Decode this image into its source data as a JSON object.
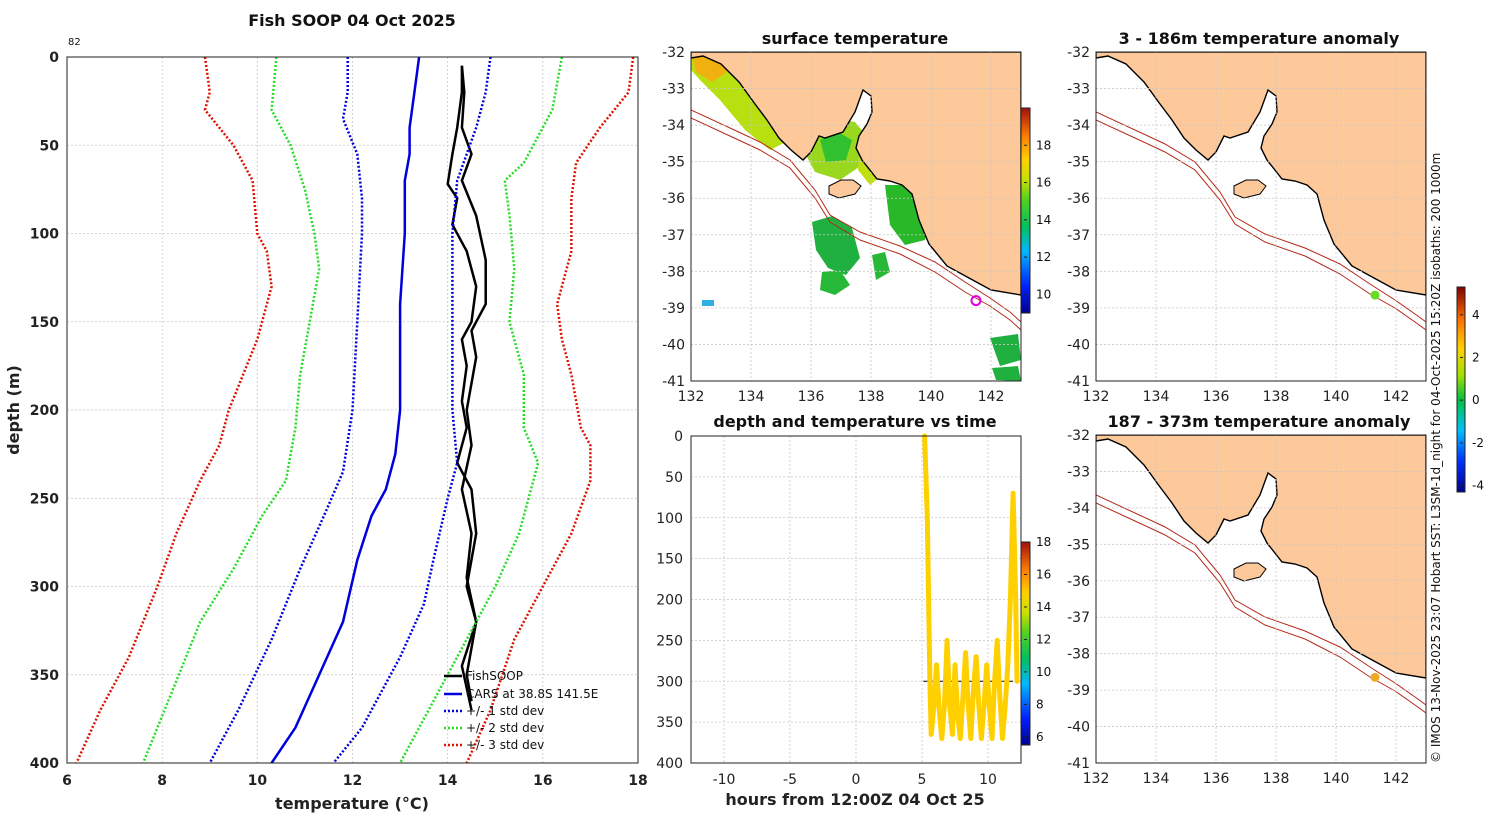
{
  "chart_data": [
    {
      "type": "line",
      "title": "Fish SOOP 04 Oct 2025",
      "corner_label": "82",
      "xlabel": "temperature (°C)",
      "ylabel": "depth (m)",
      "xlim": [
        6,
        18
      ],
      "ylim": [
        400,
        0
      ],
      "xticks": [
        6,
        8,
        10,
        12,
        14,
        16,
        18
      ],
      "yticks": [
        0,
        50,
        100,
        150,
        200,
        250,
        300,
        350,
        400
      ],
      "series": [
        {
          "name": "FishSOOP",
          "color": "#000000",
          "style": "solid",
          "legend_label": "FishSOOP",
          "points": [
            [
              14.3,
              5
            ],
            [
              14.3,
              20
            ],
            [
              14.2,
              40
            ],
            [
              14.1,
              55
            ],
            [
              14.0,
              72
            ],
            [
              14.2,
              80
            ],
            [
              14.1,
              95
            ],
            [
              14.4,
              110
            ],
            [
              14.6,
              130
            ],
            [
              14.5,
              150
            ],
            [
              14.3,
              160
            ],
            [
              14.4,
              175
            ],
            [
              14.3,
              195
            ],
            [
              14.4,
              210
            ],
            [
              14.2,
              230
            ],
            [
              14.5,
              245
            ],
            [
              14.6,
              270
            ],
            [
              14.4,
              300
            ],
            [
              14.6,
              320
            ],
            [
              14.3,
              345
            ],
            [
              14.5,
              370
            ]
          ],
          "cast_upper": [
            [
              14.3,
              5
            ],
            [
              14.35,
              20
            ],
            [
              14.3,
              40
            ],
            [
              14.5,
              55
            ],
            [
              14.3,
              70
            ],
            [
              14.6,
              90
            ],
            [
              14.8,
              115
            ],
            [
              14.8,
              140
            ],
            [
              14.5,
              155
            ],
            [
              14.6,
              170
            ],
            [
              14.4,
              200
            ],
            [
              14.5,
              220
            ],
            [
              14.3,
              245
            ],
            [
              14.5,
              270
            ],
            [
              14.4,
              295
            ],
            [
              14.6,
              320
            ],
            [
              14.4,
              350
            ],
            [
              14.5,
              365
            ]
          ]
        },
        {
          "name": "CARS",
          "color": "#0000dd",
          "style": "solid",
          "legend_label": "CARS at 38.8S 141.5E",
          "points": [
            [
              13.4,
              0
            ],
            [
              13.3,
              20
            ],
            [
              13.2,
              40
            ],
            [
              13.2,
              55
            ],
            [
              13.1,
              70
            ],
            [
              13.1,
              100
            ],
            [
              13.0,
              140
            ],
            [
              13.0,
              170
            ],
            [
              13.0,
              200
            ],
            [
              12.9,
              225
            ],
            [
              12.7,
              245
            ],
            [
              12.4,
              260
            ],
            [
              12.1,
              285
            ],
            [
              11.8,
              320
            ],
            [
              11.3,
              350
            ],
            [
              10.8,
              380
            ],
            [
              10.3,
              400
            ]
          ]
        },
        {
          "name": "+/- 1 std dev",
          "color": "#0000dd",
          "style": "dotted",
          "legend_label": "+/- 1 std dev",
          "points_lo": [
            [
              11.9,
              0
            ],
            [
              11.9,
              20
            ],
            [
              11.8,
              35
            ],
            [
              12.1,
              55
            ],
            [
              12.2,
              80
            ],
            [
              12.2,
              100
            ],
            [
              12.1,
              150
            ],
            [
              12.0,
              200
            ],
            [
              11.8,
              235
            ],
            [
              11.4,
              260
            ],
            [
              10.9,
              290
            ],
            [
              10.3,
              330
            ],
            [
              9.6,
              370
            ],
            [
              9.0,
              400
            ]
          ],
          "points_hi": [
            [
              14.9,
              0
            ],
            [
              14.8,
              20
            ],
            [
              14.6,
              40
            ],
            [
              14.4,
              55
            ],
            [
              14.2,
              70
            ],
            [
              14.1,
              100
            ],
            [
              14.1,
              150
            ],
            [
              14.1,
              200
            ],
            [
              14.2,
              230
            ],
            [
              14.0,
              250
            ],
            [
              13.7,
              285
            ],
            [
              13.5,
              310
            ],
            [
              13.0,
              340
            ],
            [
              12.2,
              380
            ],
            [
              11.6,
              400
            ]
          ]
        },
        {
          "name": "+/- 2 std dev",
          "color": "#22dd22",
          "style": "dotted",
          "legend_label": "+/- 2 std dev",
          "points_lo": [
            [
              10.4,
              0
            ],
            [
              10.3,
              30
            ],
            [
              10.7,
              50
            ],
            [
              11.0,
              75
            ],
            [
              11.2,
              100
            ],
            [
              11.3,
              120
            ],
            [
              11.1,
              150
            ],
            [
              10.9,
              180
            ],
            [
              10.8,
              210
            ],
            [
              10.6,
              240
            ],
            [
              10.1,
              260
            ],
            [
              9.5,
              290
            ],
            [
              8.8,
              320
            ],
            [
              8.2,
              360
            ],
            [
              7.6,
              400
            ]
          ],
          "points_hi": [
            [
              16.4,
              0
            ],
            [
              16.2,
              30
            ],
            [
              15.6,
              60
            ],
            [
              15.2,
              70
            ],
            [
              15.3,
              90
            ],
            [
              15.4,
              120
            ],
            [
              15.3,
              150
            ],
            [
              15.6,
              180
            ],
            [
              15.6,
              210
            ],
            [
              15.9,
              230
            ],
            [
              15.7,
              250
            ],
            [
              15.5,
              270
            ],
            [
              15.0,
              300
            ],
            [
              14.4,
              330
            ],
            [
              13.6,
              370
            ],
            [
              13.0,
              400
            ]
          ]
        },
        {
          "name": "+/- 3 std dev",
          "color": "#dd1100",
          "style": "dotted",
          "legend_label": "+/- 3 std dev",
          "points_lo": [
            [
              8.9,
              0
            ],
            [
              9.0,
              20
            ],
            [
              8.9,
              30
            ],
            [
              9.5,
              50
            ],
            [
              9.9,
              70
            ],
            [
              10.0,
              100
            ],
            [
              10.2,
              110
            ],
            [
              10.3,
              130
            ],
            [
              10.0,
              160
            ],
            [
              9.7,
              180
            ],
            [
              9.4,
              200
            ],
            [
              9.2,
              220
            ],
            [
              8.8,
              240
            ],
            [
              8.3,
              270
            ],
            [
              7.9,
              300
            ],
            [
              7.3,
              340
            ],
            [
              6.7,
              370
            ],
            [
              6.2,
              400
            ]
          ],
          "points_hi": [
            [
              17.9,
              0
            ],
            [
              17.8,
              20
            ],
            [
              17.2,
              40
            ],
            [
              16.7,
              60
            ],
            [
              16.6,
              80
            ],
            [
              16.6,
              110
            ],
            [
              16.3,
              140
            ],
            [
              16.4,
              160
            ],
            [
              16.6,
              180
            ],
            [
              16.8,
              210
            ],
            [
              17.0,
              220
            ],
            [
              17.0,
              240
            ],
            [
              16.6,
              270
            ],
            [
              16.0,
              300
            ],
            [
              15.4,
              330
            ],
            [
              14.9,
              370
            ],
            [
              14.4,
              400
            ]
          ]
        }
      ]
    },
    {
      "type": "heatmap",
      "title": "surface temperature",
      "xlim": [
        132,
        143
      ],
      "ylim": [
        -41,
        -32
      ],
      "xticks": [
        132,
        134,
        136,
        138,
        140,
        142
      ],
      "yticks": [
        -32,
        -33,
        -34,
        -35,
        -36,
        -37,
        -38,
        -39,
        -40,
        -41
      ],
      "colorbar": {
        "min": 9,
        "max": 20,
        "ticks": [
          10,
          12,
          14,
          16,
          18
        ]
      },
      "vessel_marker": {
        "lon": 141.5,
        "lat": -38.8,
        "color": "#dd00dd"
      }
    },
    {
      "type": "heatmap",
      "title": "3 - 186m temperature anomaly",
      "xlim": [
        132,
        143
      ],
      "ylim": [
        -41,
        -32
      ],
      "xticks": [
        132,
        134,
        136,
        138,
        140,
        142
      ],
      "yticks": [
        -32,
        -33,
        -34,
        -35,
        -36,
        -37,
        -38,
        -39,
        -40,
        -41
      ],
      "marker": {
        "lon": 141.3,
        "lat": -38.65,
        "color": "#66dd22"
      }
    },
    {
      "type": "heatmap",
      "title": "187 - 373m temperature anomaly",
      "xlim": [
        132,
        143
      ],
      "ylim": [
        -41,
        -32
      ],
      "xticks": [
        132,
        134,
        136,
        138,
        140,
        142
      ],
      "yticks": [
        -32,
        -33,
        -34,
        -35,
        -36,
        -37,
        -38,
        -39,
        -40,
        -41
      ],
      "marker": {
        "lon": 141.3,
        "lat": -38.65,
        "color": "#eeaa22"
      }
    },
    {
      "type": "scatter",
      "title": "depth and temperature vs time",
      "xlabel": "hours from 12:00Z 04 Oct 25",
      "xlim": [
        -12.5,
        12.5
      ],
      "ylim": [
        400,
        0
      ],
      "xticks": [
        -10,
        -5,
        0,
        5,
        10
      ],
      "yticks": [
        0,
        50,
        100,
        150,
        200,
        250,
        300,
        350,
        400
      ],
      "color": "#ffd000",
      "track": [
        [
          5.2,
          0
        ],
        [
          5.4,
          100
        ],
        [
          5.5,
          200
        ],
        [
          5.6,
          300
        ],
        [
          5.7,
          365
        ],
        [
          5.9,
          330
        ],
        [
          6.1,
          280
        ],
        [
          6.3,
          335
        ],
        [
          6.5,
          370
        ],
        [
          6.7,
          330
        ],
        [
          6.9,
          250
        ],
        [
          7.1,
          330
        ],
        [
          7.3,
          365
        ],
        [
          7.5,
          280
        ],
        [
          7.7,
          340
        ],
        [
          7.9,
          370
        ],
        [
          8.1,
          320
        ],
        [
          8.3,
          265
        ],
        [
          8.5,
          330
        ],
        [
          8.7,
          370
        ],
        [
          8.9,
          310
        ],
        [
          9.1,
          270
        ],
        [
          9.3,
          330
        ],
        [
          9.5,
          370
        ],
        [
          9.7,
          330
        ],
        [
          9.9,
          280
        ],
        [
          10.1,
          330
        ],
        [
          10.3,
          370
        ],
        [
          10.5,
          300
        ],
        [
          10.7,
          250
        ],
        [
          10.9,
          320
        ],
        [
          11.1,
          370
        ],
        [
          11.3,
          330
        ],
        [
          11.5,
          280
        ],
        [
          11.7,
          200
        ],
        [
          11.9,
          70
        ],
        [
          12.1,
          200
        ],
        [
          12.2,
          300
        ]
      ],
      "reference_line": {
        "depth": 300,
        "from_hour": 5.1,
        "to_hour": 11.9
      },
      "colorbar": {
        "min": 5.5,
        "max": 18,
        "ticks": [
          6,
          8,
          10,
          12,
          14,
          16,
          18
        ]
      }
    },
    {
      "type": "colorbar",
      "name": "anomaly",
      "min": -4.3,
      "max": 5.3,
      "ticks": [
        -4,
        -2,
        0,
        2,
        4
      ]
    }
  ],
  "credit": "© IMOS 13-Nov-2025 23:07 Hobart SST: L3SM-1d_night for 04-Oct-2025 15:20Z isobaths: 200  1000m",
  "colors": {
    "land": "#fdc99a",
    "coast": "#000000",
    "isobath": "#b42818",
    "grid": "#c8c8c8"
  }
}
